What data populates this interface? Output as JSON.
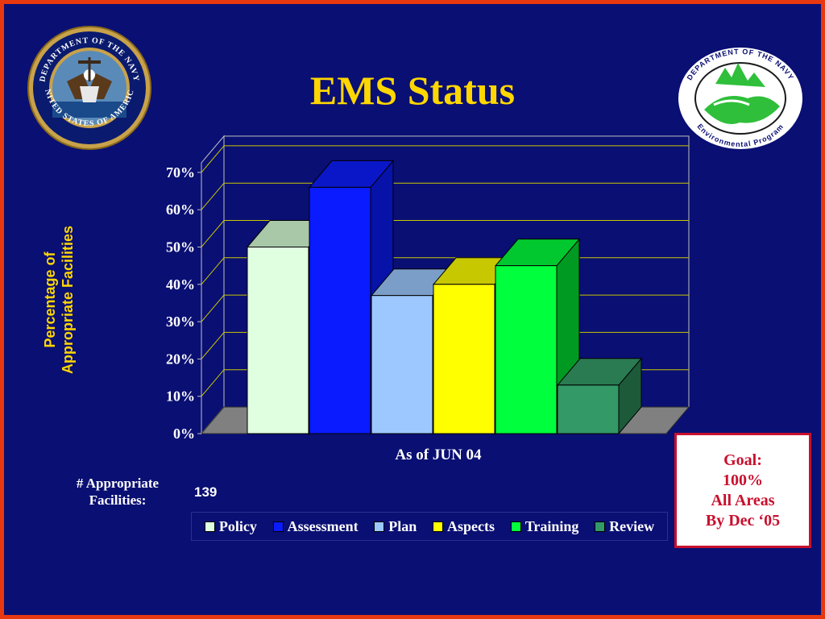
{
  "slide": {
    "title": "EMS Status",
    "facilities_label_line1": "# Appropriate",
    "facilities_label_line2": "Facilities:",
    "facilities_value": "139",
    "goal": {
      "line1": "Goal:",
      "line2": "100%",
      "line3": "All Areas",
      "line4": "By Dec ‘05"
    }
  },
  "chart_data": {
    "type": "bar",
    "title": "EMS Status",
    "xlabel": "As of JUN 04",
    "ylabel_line1": "Percentage of",
    "ylabel_line2": "Appropriate Facilities",
    "ylim": [
      0,
      70
    ],
    "yticks": [
      "0%",
      "10%",
      "20%",
      "30%",
      "40%",
      "50%",
      "60%",
      "70%"
    ],
    "grid": true,
    "legend_position": "bottom",
    "series": [
      {
        "name": "Policy",
        "value": 50,
        "color": "#e0ffe0",
        "side": "#93b894",
        "top": "#a8c8a8"
      },
      {
        "name": "Assessment",
        "value": 66,
        "color": "#0a1bff",
        "side": "#0612a8",
        "top": "#0a17c8"
      },
      {
        "name": "Plan",
        "value": 37,
        "color": "#9cc8ff",
        "side": "#5e82b8",
        "top": "#7a9ec8"
      },
      {
        "name": "Aspects",
        "value": 40,
        "color": "#ffff00",
        "side": "#a8a800",
        "top": "#c8c800"
      },
      {
        "name": "Training",
        "value": 45,
        "color": "#00ff3c",
        "side": "#009a22",
        "top": "#00c82e"
      },
      {
        "name": "Review",
        "value": 13,
        "color": "#339966",
        "side": "#1c5a3a",
        "top": "#2a7a52"
      }
    ]
  },
  "colors": {
    "background": "#0a0f73",
    "border": "#e8380f",
    "title": "#ffd700",
    "grid": "#c8c800",
    "floor": "#808080",
    "goal": "#c8102e"
  },
  "logos": {
    "left_seal_top": "DEPARTMENT OF THE NAVY",
    "left_seal_bottom": "UNITED STATES OF AMERICA",
    "right_seal_top": "DEPARTMENT OF THE NAVY",
    "right_seal_bottom": "Environmental Program"
  }
}
